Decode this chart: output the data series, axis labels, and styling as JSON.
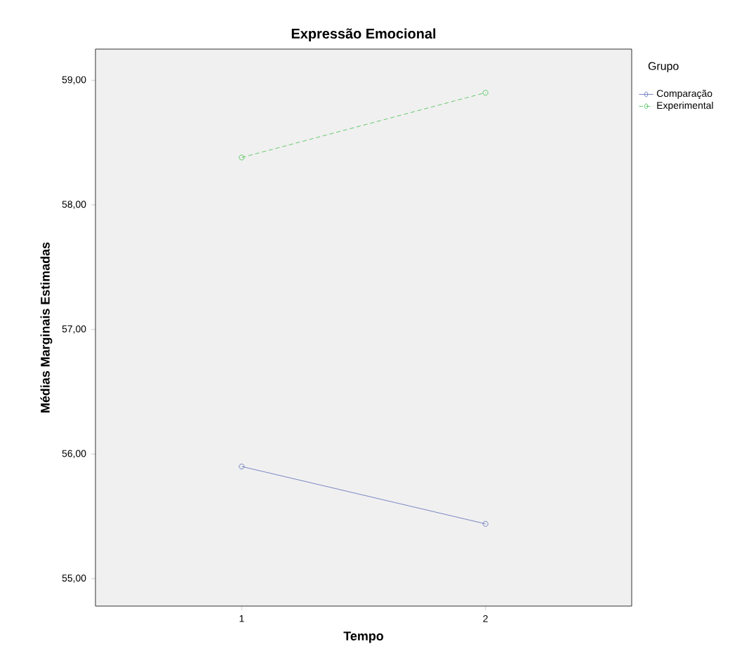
{
  "chart_data": {
    "type": "line",
    "title": "Expressão Emocional",
    "xlabel": "Tempo",
    "ylabel": "Médias Marginais Estimadas",
    "legend_title": "Grupo",
    "x": [
      1,
      2
    ],
    "xlim": [
      0.4,
      2.6
    ],
    "xticks": [
      1,
      2
    ],
    "ylim": [
      54.78,
      59.25
    ],
    "yticks": [
      {
        "value": 55,
        "label": "55,00"
      },
      {
        "value": 56,
        "label": "56,00"
      },
      {
        "value": 57,
        "label": "57,00"
      },
      {
        "value": 58,
        "label": "58,00"
      },
      {
        "value": 59,
        "label": "59,00"
      }
    ],
    "series": [
      {
        "name": "Comparação",
        "color": "#5b6bb8",
        "values": [
          55.9,
          55.44
        ],
        "line_style": "solid"
      },
      {
        "name": "Experimental",
        "color": "#3fbf4a",
        "values": [
          58.38,
          58.9
        ],
        "line_style": "dashed"
      }
    ],
    "marker": "circle",
    "legend": "top right",
    "grid": false
  }
}
